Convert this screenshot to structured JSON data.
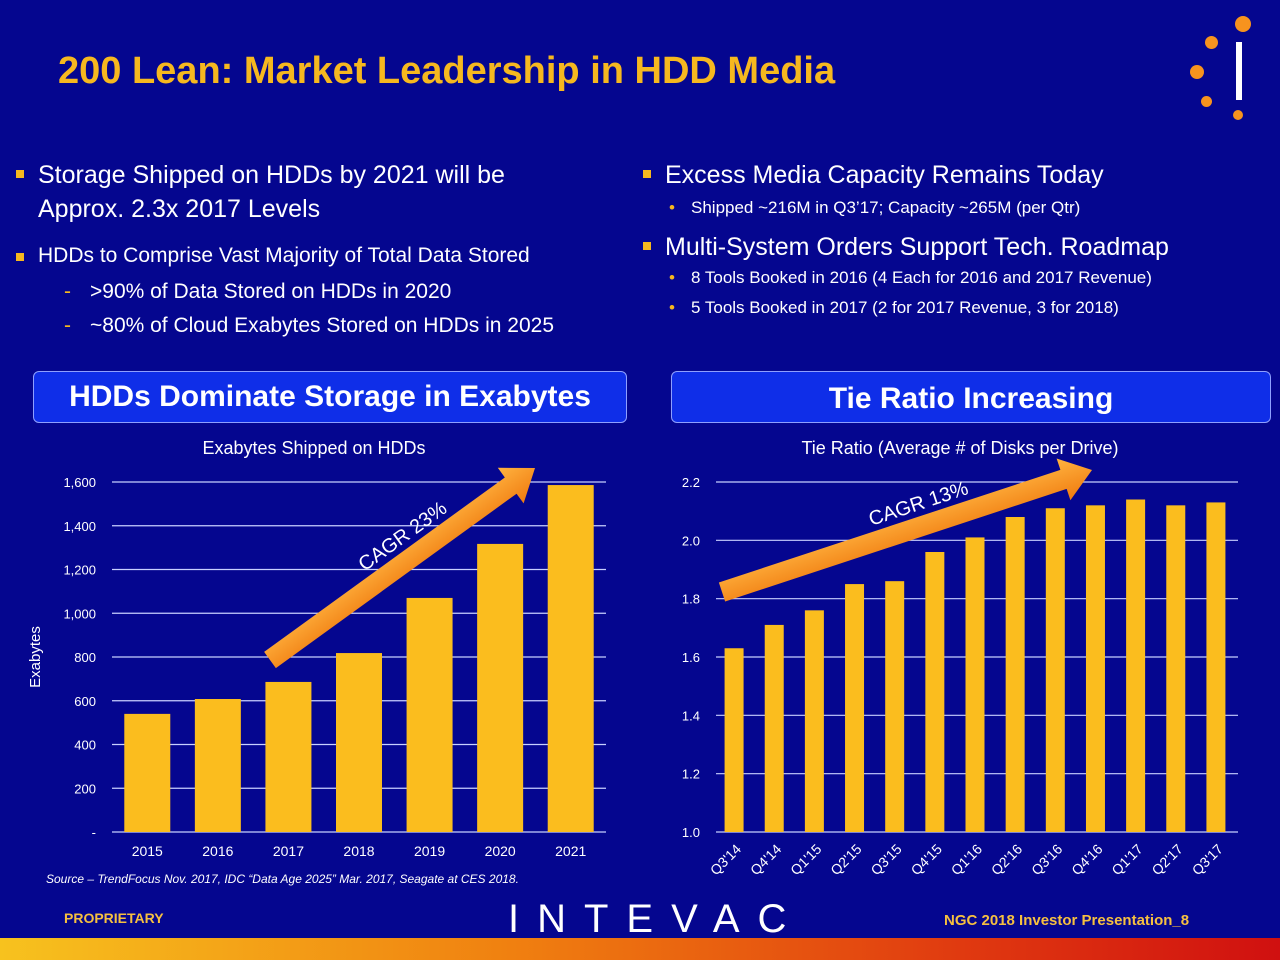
{
  "title": "200 Lean: Market Leadership in HDD Media",
  "left_bullets": {
    "b1": "Storage Shipped on HDDs by 2021 will be",
    "b1b": "Approx. 2.3x 2017 Levels",
    "b2": "HDDs to Comprise Vast Majority of Total Data Stored",
    "s1": ">90% of Data Stored on HDDs in 2020",
    "s2": "~80% of Cloud Exabytes Stored on HDDs in 2025",
    "dash": "-"
  },
  "right_bullets": {
    "b1": "Excess Media Capacity Remains Today",
    "s1": "Shipped ~216M in Q3’17; Capacity ~265M (per Qtr)",
    "b2": "Multi-System Orders Support Tech. Roadmap",
    "s2": "8 Tools Booked in 2016 (4 Each for 2016 and 2017 Revenue)",
    "s3": "5 Tools Booked in 2017 (2 for 2017 Revenue, 3 for 2018)",
    "dot": "•"
  },
  "left_box": "HDDs Dominate Storage in Exabytes",
  "right_box": "Tie Ratio Increasing",
  "source": "Source – TrendFocus Nov. 2017, IDC “Data Age 2025” Mar. 2017, Seagate at CES 2018.",
  "footer": {
    "proprietary": "PROPRIETARY",
    "logo": "INTEVAC",
    "page": "NGC 2018 Investor Presentation_8"
  },
  "colors": {
    "background": "#05068f",
    "accent": "#f6b81f",
    "bar": "#fbbd1e"
  },
  "chart_data": [
    {
      "type": "bar",
      "title": "Exabytes Shipped on HDDs",
      "ylabel": "Exabytes",
      "xlabel": "",
      "categories": [
        "2015",
        "2016",
        "2017",
        "2018",
        "2019",
        "2020",
        "2021"
      ],
      "values": [
        540,
        608,
        686,
        818,
        1070,
        1317,
        1586
      ],
      "ylim": [
        0,
        1600
      ],
      "yticks": [
        0,
        200,
        400,
        600,
        800,
        1000,
        1200,
        1400,
        1600
      ],
      "ytick_labels": [
        "-",
        "200",
        "400",
        "600",
        "800",
        "1,000",
        "1,200",
        "1,400",
        "1,600"
      ],
      "annotation": "CAGR 23%",
      "grid": true
    },
    {
      "type": "bar",
      "title": "Tie Ratio (Average # of Disks per Drive)",
      "ylabel": "",
      "xlabel": "",
      "categories": [
        "Q3'14",
        "Q4'14",
        "Q1'15",
        "Q2'15",
        "Q3'15",
        "Q4'15",
        "Q1'16",
        "Q2'16",
        "Q3'16",
        "Q4'16",
        "Q1'17",
        "Q2'17",
        "Q3'17"
      ],
      "values": [
        1.63,
        1.71,
        1.76,
        1.85,
        1.86,
        1.96,
        2.01,
        2.08,
        2.11,
        2.12,
        2.14,
        2.12,
        2.13
      ],
      "ylim": [
        1.0,
        2.2
      ],
      "yticks": [
        1.0,
        1.2,
        1.4,
        1.6,
        1.8,
        2.0,
        2.2
      ],
      "ytick_labels": [
        "1.0",
        "1.2",
        "1.4",
        "1.6",
        "1.8",
        "2.0",
        "2.2"
      ],
      "annotation": "CAGR 13%",
      "grid": true
    }
  ]
}
